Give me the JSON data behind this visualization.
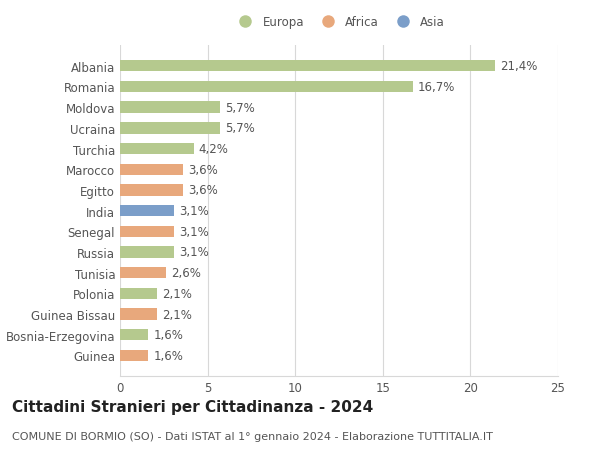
{
  "categories": [
    "Albania",
    "Romania",
    "Moldova",
    "Ucraina",
    "Turchia",
    "Marocco",
    "Egitto",
    "India",
    "Senegal",
    "Russia",
    "Tunisia",
    "Polonia",
    "Guinea Bissau",
    "Bosnia-Erzegovina",
    "Guinea"
  ],
  "values": [
    21.4,
    16.7,
    5.7,
    5.7,
    4.2,
    3.6,
    3.6,
    3.1,
    3.1,
    3.1,
    2.6,
    2.1,
    2.1,
    1.6,
    1.6
  ],
  "labels": [
    "21,4%",
    "16,7%",
    "5,7%",
    "5,7%",
    "4,2%",
    "3,6%",
    "3,6%",
    "3,1%",
    "3,1%",
    "3,1%",
    "2,6%",
    "2,1%",
    "2,1%",
    "1,6%",
    "1,6%"
  ],
  "continent": [
    "Europa",
    "Europa",
    "Europa",
    "Europa",
    "Europa",
    "Africa",
    "Africa",
    "Asia",
    "Africa",
    "Europa",
    "Africa",
    "Europa",
    "Africa",
    "Europa",
    "Africa"
  ],
  "colors": {
    "Europa": "#b5c98e",
    "Africa": "#e8a87c",
    "Asia": "#7b9ec9"
  },
  "xlim": [
    0,
    25
  ],
  "xticks": [
    0,
    5,
    10,
    15,
    20,
    25
  ],
  "title": "Cittadini Stranieri per Cittadinanza - 2024",
  "subtitle": "COMUNE DI BORMIO (SO) - Dati ISTAT al 1° gennaio 2024 - Elaborazione TUTTITALIA.IT",
  "background_color": "#ffffff",
  "bar_height": 0.55,
  "grid_color": "#d8d8d8",
  "label_fontsize": 8.5,
  "tick_fontsize": 8.5,
  "title_fontsize": 11,
  "subtitle_fontsize": 8,
  "ylabel_color": "#555555",
  "text_color": "#555555"
}
